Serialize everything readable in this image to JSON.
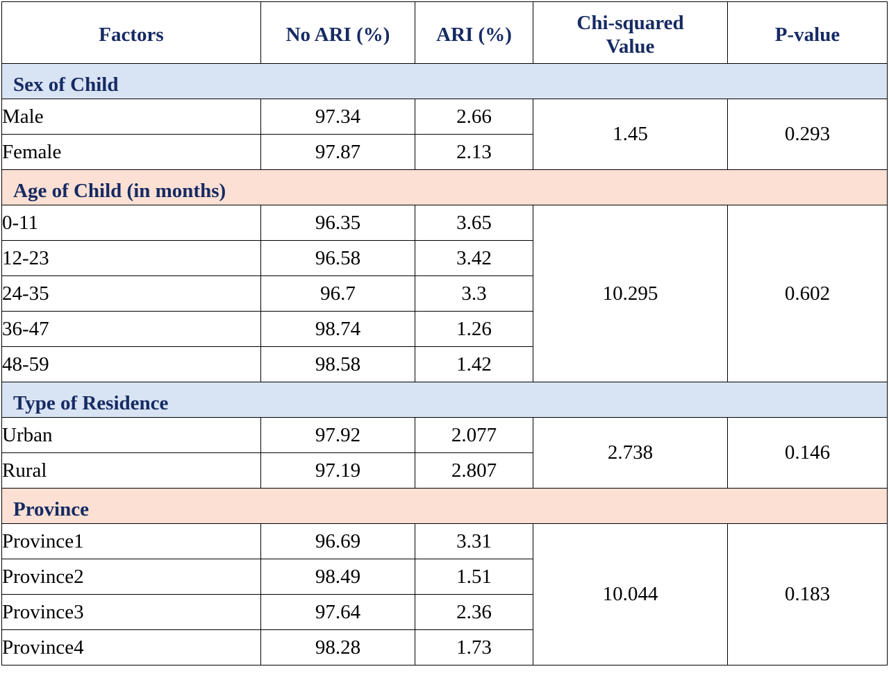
{
  "headers": {
    "factors": "Factors",
    "no_ari": "No ARI (%)",
    "ari": "ARI (%)",
    "chi_line1": "Chi-squared",
    "chi_line2": "Value",
    "p_value": "P-value"
  },
  "groups": [
    {
      "title": "Sex of Child",
      "color": "#d8e3f3",
      "chi": "1.45",
      "p": "0.293",
      "rows": [
        {
          "label": "Male",
          "no_ari": "97.34",
          "ari": "2.66"
        },
        {
          "label": "Female",
          "no_ari": "97.87",
          "ari": "2.13"
        }
      ]
    },
    {
      "title": "Age of Child (in months)",
      "color": "#fbe0d3",
      "chi": "10.295",
      "p": "0.602",
      "rows": [
        {
          "label": "0-11",
          "no_ari": "96.35",
          "ari": "3.65"
        },
        {
          "label": "12-23",
          "no_ari": "96.58",
          "ari": "3.42"
        },
        {
          "label": "24-35",
          "no_ari": "96.7",
          "ari": "3.3"
        },
        {
          "label": "36-47",
          "no_ari": "98.74",
          "ari": "1.26"
        },
        {
          "label": "48-59",
          "no_ari": "98.58",
          "ari": "1.42"
        }
      ]
    },
    {
      "title": "Type of Residence",
      "color": "#d8e3f3",
      "chi": "2.738",
      "p": "0.146",
      "rows": [
        {
          "label": "Urban",
          "no_ari": "97.92",
          "ari": "2.077"
        },
        {
          "label": "Rural",
          "no_ari": "97.19",
          "ari": "2.807"
        }
      ]
    },
    {
      "title": "Province",
      "color": "#fbe0d3",
      "chi": "10.044",
      "p": "0.183",
      "rows": [
        {
          "label": "Province1",
          "no_ari": "96.69",
          "ari": "3.31"
        },
        {
          "label": "Province2",
          "no_ari": "98.49",
          "ari": "1.51"
        },
        {
          "label": "Province3",
          "no_ari": "97.64",
          "ari": "2.36"
        },
        {
          "label": "Province4",
          "no_ari": "98.28",
          "ari": "1.73"
        }
      ]
    }
  ]
}
